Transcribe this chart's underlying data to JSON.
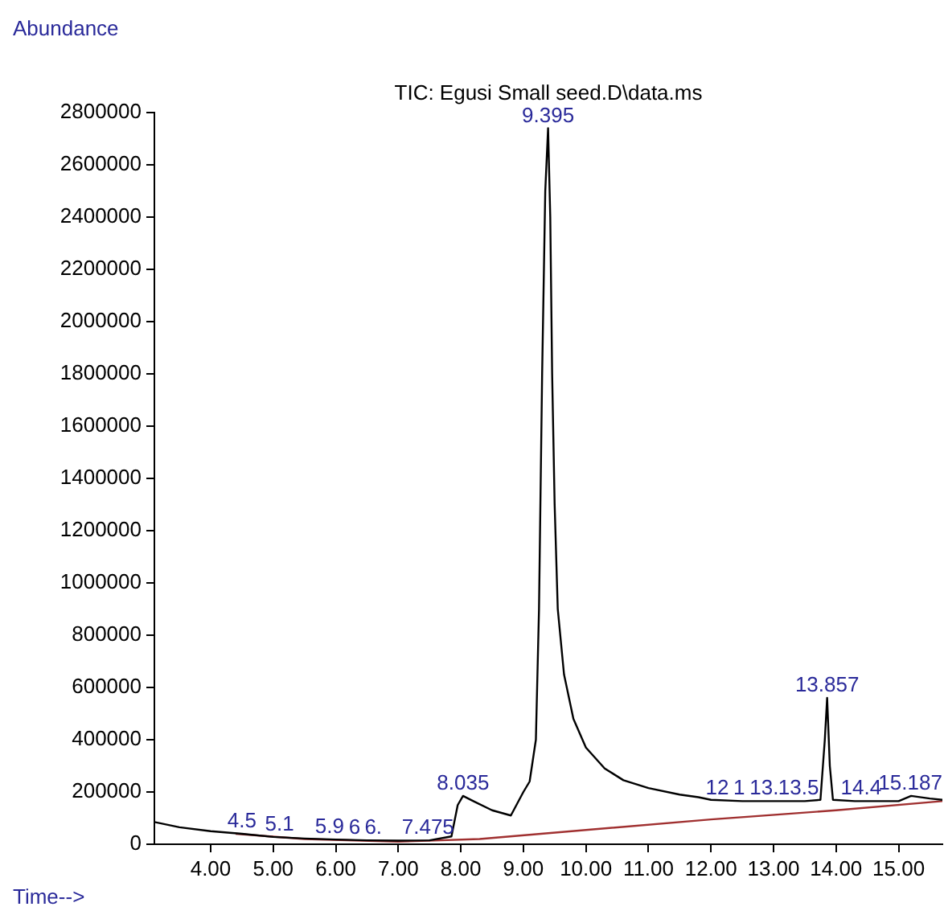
{
  "chart_data": {
    "type": "line",
    "title": "TIC: Egusi Small seed.D\\data.ms",
    "xlabel": "Time-->",
    "ylabel": "Abundance",
    "xlim": [
      3.1,
      15.7
    ],
    "xticks": [
      {
        "value": 4,
        "label": "4.00"
      },
      {
        "value": 5,
        "label": "5.00"
      },
      {
        "value": 6,
        "label": "6.00"
      },
      {
        "value": 7,
        "label": "7.00"
      },
      {
        "value": 8,
        "label": "8.00"
      },
      {
        "value": 9,
        "label": "9.00"
      },
      {
        "value": 10,
        "label": "10.00"
      },
      {
        "value": 11,
        "label": "11.00"
      },
      {
        "value": 12,
        "label": "12.00"
      },
      {
        "value": 13,
        "label": "13.00"
      },
      {
        "value": 14,
        "label": "14.00"
      },
      {
        "value": 15,
        "label": "15.00"
      }
    ],
    "ylim": [
      0,
      2800000
    ],
    "yticks": [
      0,
      200000,
      400000,
      600000,
      800000,
      1000000,
      1200000,
      1400000,
      1600000,
      1800000,
      2000000,
      2200000,
      2400000,
      2600000,
      2800000
    ],
    "grid": false,
    "marker": "none",
    "line_style": "solid",
    "series": [
      {
        "color": "#000000",
        "x": [
          3.1,
          3.5,
          4.0,
          4.5,
          5.0,
          5.5,
          6.0,
          6.5,
          7.0,
          7.5,
          7.85,
          7.95,
          8.035,
          8.2,
          8.5,
          8.8,
          9.0,
          9.1,
          9.2,
          9.25,
          9.3,
          9.35,
          9.395,
          9.43,
          9.46,
          9.5,
          9.55,
          9.65,
          9.8,
          10.0,
          10.3,
          10.6,
          11.0,
          11.5,
          11.8,
          12.0,
          12.5,
          13.0,
          13.5,
          13.75,
          13.82,
          13.857,
          13.9,
          13.95,
          14.3,
          15.0,
          15.2,
          15.5,
          15.7
        ],
        "values": [
          85000,
          65000,
          50000,
          40000,
          28000,
          22000,
          18000,
          15000,
          14000,
          15000,
          30000,
          150000,
          185000,
          165000,
          130000,
          110000,
          200000,
          240000,
          400000,
          900000,
          1800000,
          2500000,
          2740000,
          2400000,
          1800000,
          1300000,
          900000,
          650000,
          480000,
          370000,
          290000,
          245000,
          215000,
          190000,
          180000,
          170000,
          165000,
          165000,
          165000,
          170000,
          400000,
          560000,
          300000,
          170000,
          165000,
          165000,
          185000,
          175000,
          170000
        ]
      },
      {
        "color": "#a03030",
        "x": [
          4.4,
          5.5,
          7.0,
          8.3,
          12.0,
          14.0,
          15.7
        ],
        "values": [
          40000,
          20000,
          10000,
          20000,
          95000,
          130000,
          165000
        ]
      }
    ],
    "annotations": [
      {
        "text": "4.5",
        "x": 4.5,
        "y": 40000
      },
      {
        "text": "5.1",
        "x": 5.1,
        "y": 28000
      },
      {
        "text": "5.9",
        "x": 5.9,
        "y": 18000
      },
      {
        "text": "6",
        "x": 6.3,
        "y": 15000
      },
      {
        "text": "6.",
        "x": 6.6,
        "y": 15000
      },
      {
        "text": "7.475",
        "x": 7.475,
        "y": 15000
      },
      {
        "text": "8.035",
        "x": 8.035,
        "y": 185000
      },
      {
        "text": "9.395",
        "x": 9.395,
        "y": 2740000
      },
      {
        "text": "12",
        "x": 12.1,
        "y": 165000
      },
      {
        "text": "1",
        "x": 12.45,
        "y": 165000
      },
      {
        "text": "13.",
        "x": 12.85,
        "y": 165000
      },
      {
        "text": "13.5",
        "x": 13.4,
        "y": 165000
      },
      {
        "text": "13.857",
        "x": 13.857,
        "y": 560000
      },
      {
        "text": "14.4",
        "x": 14.4,
        "y": 165000
      },
      {
        "text": "15.187",
        "x": 15.187,
        "y": 185000
      }
    ]
  }
}
